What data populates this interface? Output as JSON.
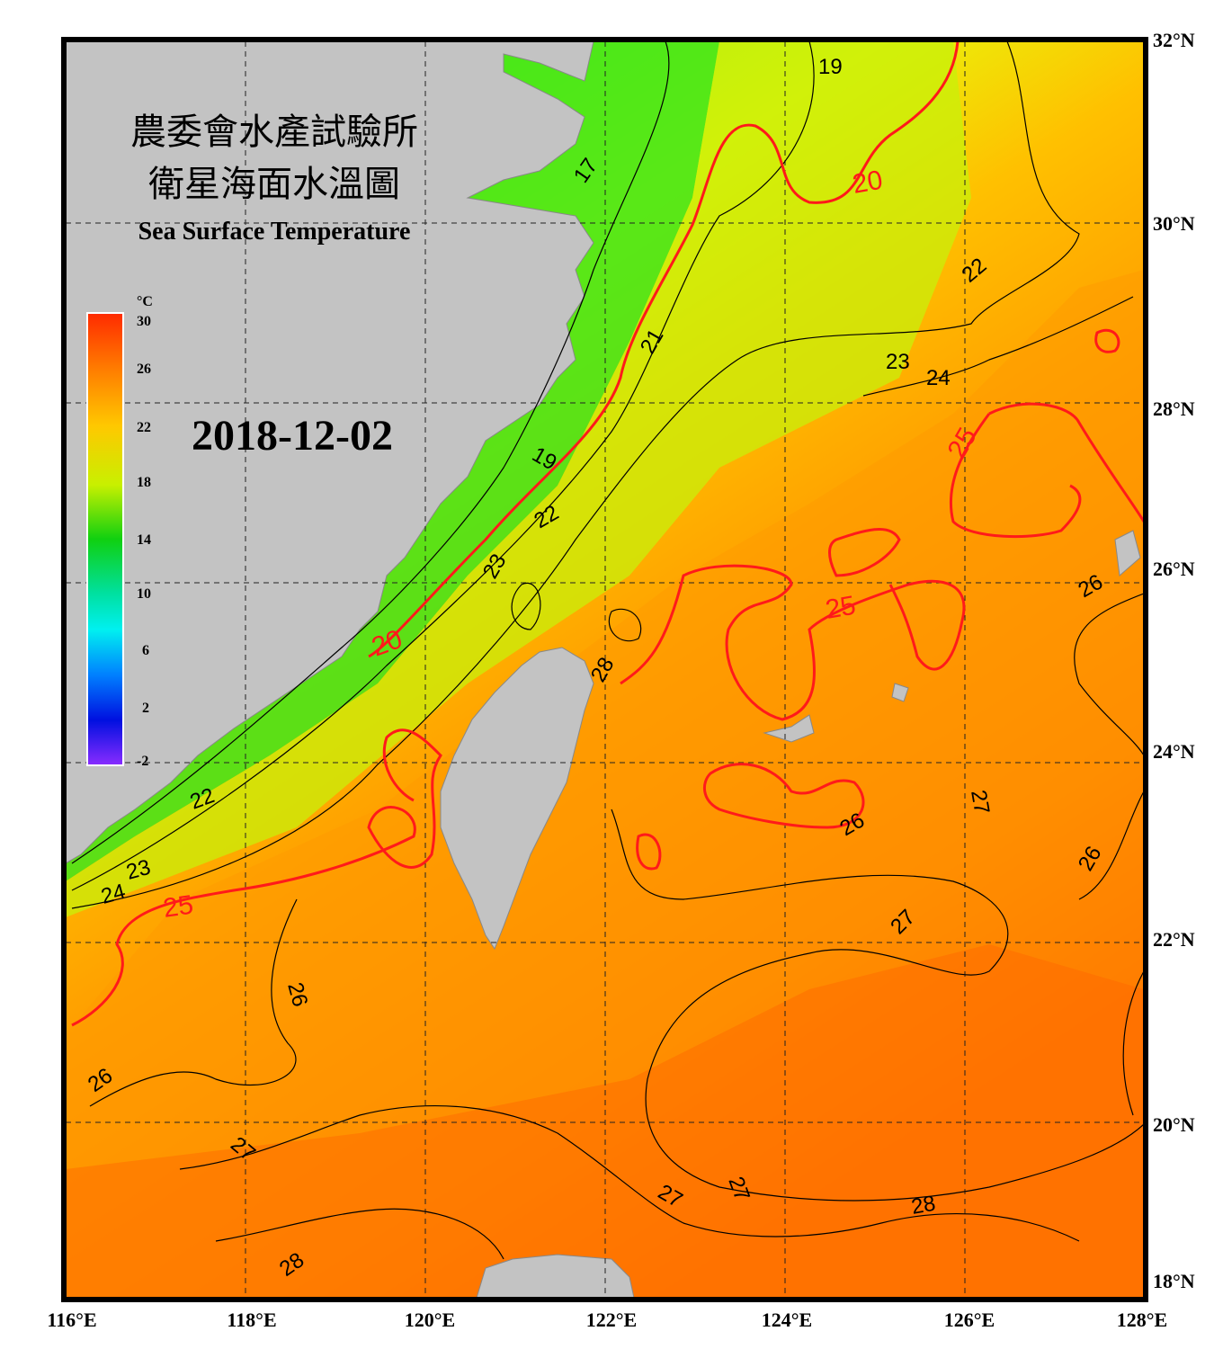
{
  "title": {
    "line1": "農委會水產試驗所",
    "line2": "衛星海面水溫圖",
    "line3": "Sea Surface Temperature"
  },
  "date": "2018-12-02",
  "colorbar": {
    "unit": "°C",
    "ticks": [
      "30",
      "26",
      "22",
      "18",
      "14",
      "10",
      "6",
      "2",
      "-2"
    ],
    "range": [
      -2,
      30
    ]
  },
  "axes": {
    "lon_labels": [
      "116°E",
      "118°E",
      "120°E",
      "122°E",
      "124°E",
      "126°E",
      "128°E"
    ],
    "lat_labels": [
      "32°N",
      "30°N",
      "28°N",
      "26°N",
      "24°N",
      "22°N",
      "20°N",
      "18°N"
    ]
  },
  "contour_labels": {
    "red": [
      "20",
      "20",
      "25",
      "25",
      "25"
    ],
    "black": [
      "19",
      "17",
      "22",
      "21",
      "23",
      "24",
      "19",
      "22",
      "23",
      "28",
      "26",
      "22",
      "23",
      "24",
      "26",
      "27",
      "26",
      "26",
      "27",
      "26",
      "27",
      "27",
      "27",
      "28"
    ]
  },
  "colors": {
    "land": "#c3c3c3",
    "warm": "#ff7a00",
    "cool": "#1fe01f",
    "contour_highlight": "#ff1a1a"
  }
}
